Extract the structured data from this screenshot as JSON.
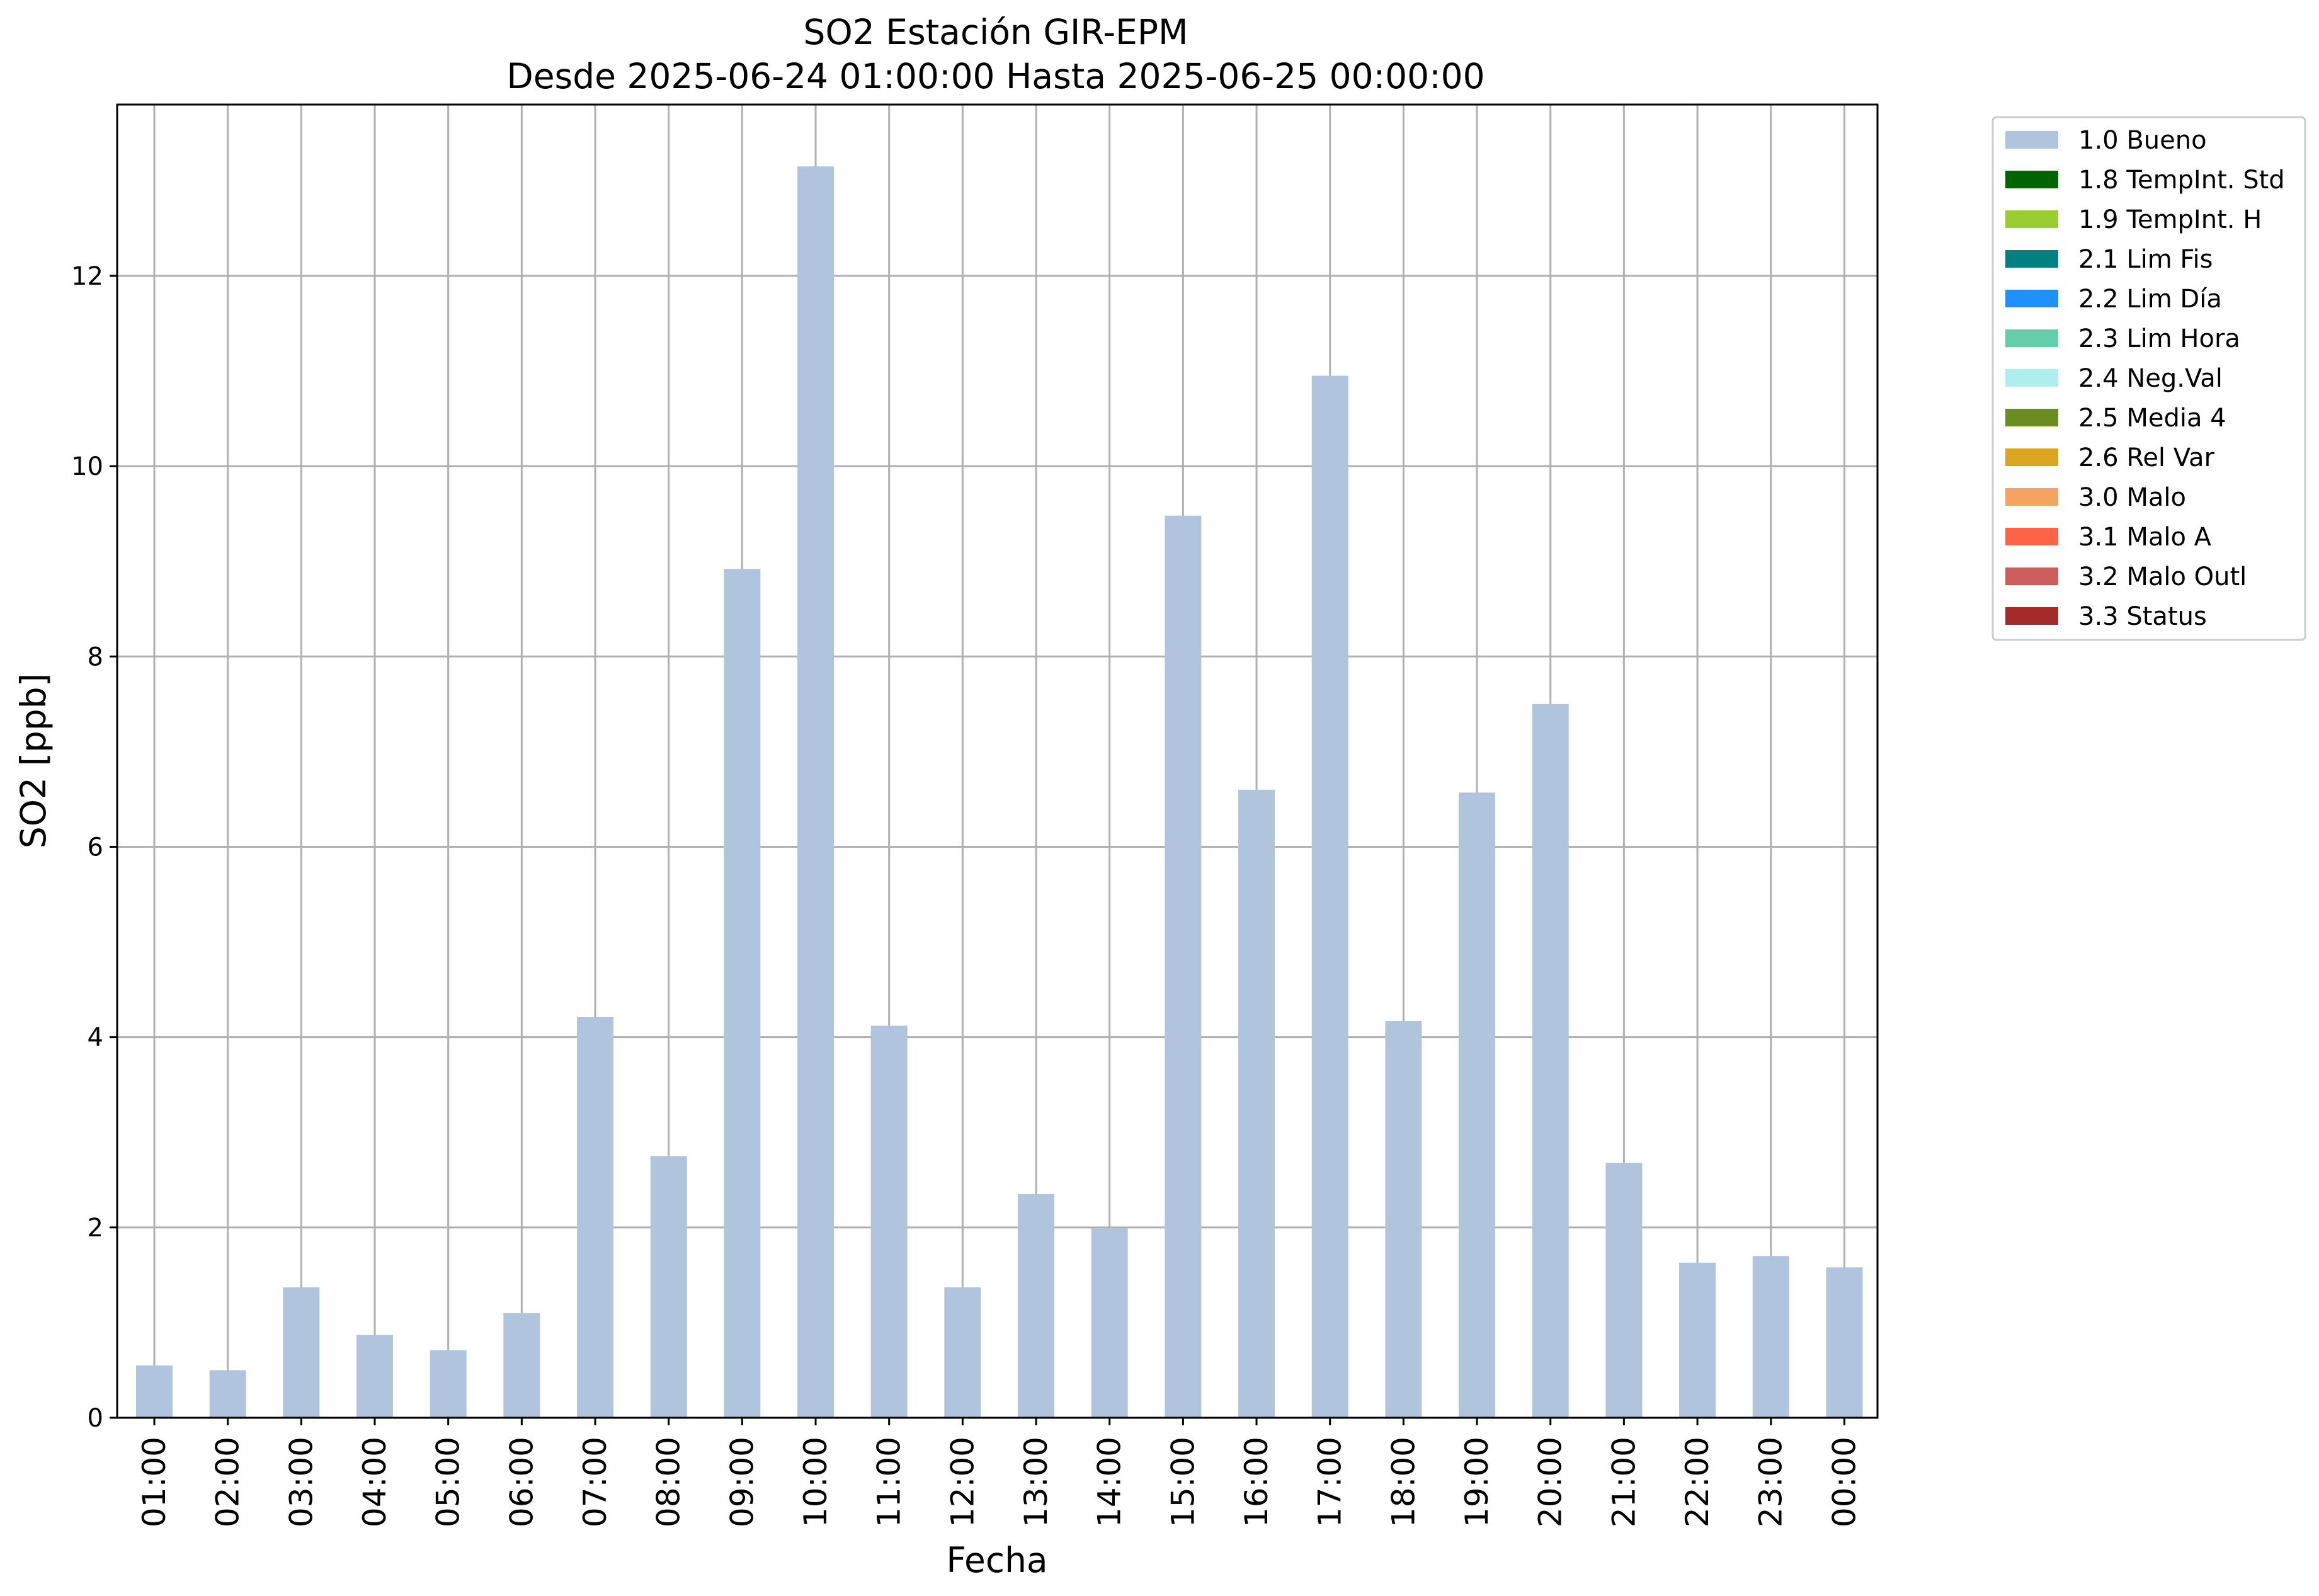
{
  "chart_data": {
    "type": "bar",
    "title": "SO2 Estación GIR-EPM",
    "subtitle": "Desde 2025-06-24 01:00:00 Hasta 2025-06-25 00:00:00",
    "xlabel": "Fecha",
    "ylabel": "SO2 [ppb]",
    "ylim": [
      0,
      13.8
    ],
    "yticks": [
      0,
      2,
      4,
      6,
      8,
      10,
      12
    ],
    "grid": true,
    "legend_position": "outside-top-right",
    "categories": [
      "01:00",
      "02:00",
      "03:00",
      "04:00",
      "05:00",
      "06:00",
      "07:00",
      "08:00",
      "09:00",
      "10:00",
      "11:00",
      "12:00",
      "13:00",
      "14:00",
      "15:00",
      "16:00",
      "17:00",
      "18:00",
      "19:00",
      "20:00",
      "21:00",
      "22:00",
      "23:00",
      "00:00"
    ],
    "series": [
      {
        "name": "1.0 Bueno",
        "color": "#b0c4de",
        "values": [
          0.55,
          0.5,
          1.37,
          0.87,
          0.71,
          1.1,
          4.21,
          2.75,
          8.92,
          13.15,
          4.12,
          1.37,
          2.35,
          1.99,
          9.48,
          6.6,
          10.95,
          4.17,
          6.57,
          7.5,
          2.68,
          1.63,
          1.7,
          1.58
        ]
      }
    ],
    "legend": [
      {
        "label": "1.0 Bueno",
        "color": "#b0c4de"
      },
      {
        "label": "1.8 TempInt. Std",
        "color": "#006400"
      },
      {
        "label": "1.9 TempInt. H",
        "color": "#9acd32"
      },
      {
        "label": "2.1 Lim Fis",
        "color": "#008080"
      },
      {
        "label": "2.2 Lim Día",
        "color": "#1e90ff"
      },
      {
        "label": "2.3 Lim Hora",
        "color": "#66cdaa"
      },
      {
        "label": "2.4 Neg.Val",
        "color": "#afeeee"
      },
      {
        "label": "2.5 Media 4",
        "color": "#6b8e23"
      },
      {
        "label": "2.6 Rel Var",
        "color": "#daa520"
      },
      {
        "label": "3.0 Malo",
        "color": "#f4a460"
      },
      {
        "label": "3.1 Malo A",
        "color": "#ff6347"
      },
      {
        "label": "3.2 Malo Outl",
        "color": "#cd5c5c"
      },
      {
        "label": "3.3 Status",
        "color": "#a52a2a"
      }
    ]
  }
}
